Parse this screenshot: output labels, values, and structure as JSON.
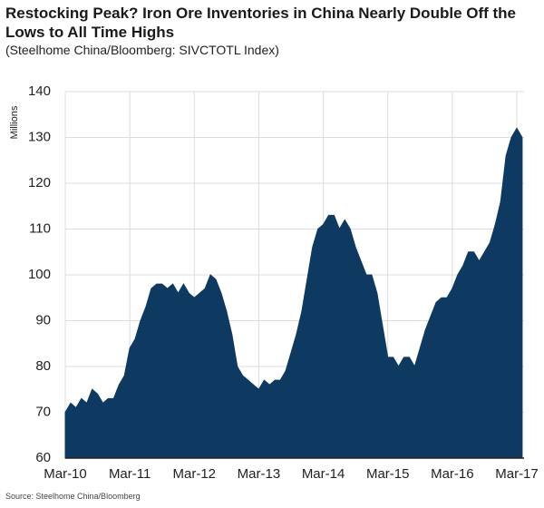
{
  "chart_data": {
    "type": "area",
    "title": "Restocking Peak? Iron Ore Inventories in China Nearly Double Off the Lows to All Time Highs",
    "subtitle": "(Steelhome China/Bloomberg: SIVCTOTL Index)",
    "y_label": "Millions",
    "source": "Source: Steelhome China/Bloomberg",
    "color": "#0e3a62",
    "grid": true,
    "x": [
      "Mar-10",
      "Apr-10",
      "May-10",
      "Jun-10",
      "Jul-10",
      "Aug-10",
      "Sep-10",
      "Oct-10",
      "Nov-10",
      "Dec-10",
      "Jan-11",
      "Feb-11",
      "Mar-11",
      "Apr-11",
      "May-11",
      "Jun-11",
      "Jul-11",
      "Aug-11",
      "Sep-11",
      "Oct-11",
      "Nov-11",
      "Dec-11",
      "Jan-12",
      "Feb-12",
      "Mar-12",
      "Apr-12",
      "May-12",
      "Jun-12",
      "Jul-12",
      "Aug-12",
      "Sep-12",
      "Oct-12",
      "Nov-12",
      "Dec-12",
      "Jan-13",
      "Feb-13",
      "Mar-13",
      "Apr-13",
      "May-13",
      "Jun-13",
      "Jul-13",
      "Aug-13",
      "Sep-13",
      "Oct-13",
      "Nov-13",
      "Dec-13",
      "Jan-14",
      "Feb-14",
      "Mar-14",
      "Apr-14",
      "May-14",
      "Jun-14",
      "Jul-14",
      "Aug-14",
      "Sep-14",
      "Oct-14",
      "Nov-14",
      "Dec-14",
      "Jan-15",
      "Feb-15",
      "Mar-15",
      "Apr-15",
      "May-15",
      "Jun-15",
      "Jul-15",
      "Aug-15",
      "Sep-15",
      "Oct-15",
      "Nov-15",
      "Dec-15",
      "Jan-16",
      "Feb-16",
      "Mar-16",
      "Apr-16",
      "May-16",
      "Jun-16",
      "Jul-16",
      "Aug-16",
      "Sep-16",
      "Oct-16",
      "Nov-16",
      "Dec-16",
      "Jan-17",
      "Feb-17",
      "Mar-17",
      "Apr-17"
    ],
    "values": [
      70,
      72,
      71,
      73,
      72,
      75,
      74,
      72,
      73,
      73,
      76,
      78,
      84,
      86,
      90,
      93,
      97,
      98,
      98,
      97,
      98,
      96,
      98,
      96,
      95,
      96,
      97,
      100,
      99,
      96,
      92,
      87,
      80,
      78,
      77,
      76,
      75,
      77,
      76,
      77,
      77,
      79,
      83,
      87,
      92,
      99,
      106,
      110,
      111,
      113,
      113,
      110,
      112,
      110,
      106,
      103,
      100,
      100,
      96,
      89,
      82,
      82,
      80,
      82,
      82,
      80,
      84,
      88,
      91,
      94,
      95,
      95,
      97,
      100,
      102,
      105,
      105,
      103,
      105,
      107,
      111,
      116,
      126,
      130,
      132,
      130
    ],
    "xticks": [
      "Mar-10",
      "Mar-11",
      "Mar-12",
      "Mar-13",
      "Mar-14",
      "Mar-15",
      "Mar-16",
      "Mar-17"
    ],
    "ylim": [
      60,
      140
    ],
    "yticks": [
      60,
      70,
      80,
      90,
      100,
      110,
      120,
      130,
      140
    ]
  }
}
